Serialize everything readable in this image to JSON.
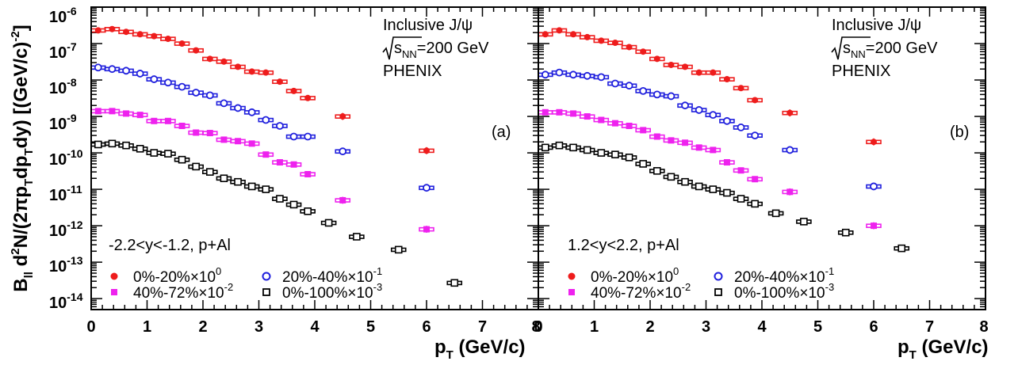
{
  "figure": {
    "ylabel": {
      "main": "B",
      "ll": "ll",
      "mid1": " d",
      "two": "2",
      "mid2": "N/(2πp",
      "t1": "T",
      "mid3": "dp",
      "t2": "T",
      "mid4": "dy) [(GeV/c)",
      "exp": "-2",
      "end": "]"
    },
    "xlabel": {
      "p": "p",
      "t": "T",
      "unit": " (GeV/c)"
    }
  },
  "colors": {
    "c0_20": "#ee1c1c",
    "c20_40": "#1f1fdd",
    "c40_72": "#ee22ee",
    "c0_100": "#000000"
  },
  "chart_data": [
    {
      "type": "scatter",
      "panel_label": "(a)",
      "annotation": {
        "line1": "Inclusive J/ψ",
        "sqrt_s": "s",
        "sqrt_sub": "NN",
        "energy": "=200 GeV",
        "exp_name": "PHENIX"
      },
      "rapidity_label": "-2.2<y<-1.2, p+Al",
      "ylog": true,
      "xlim": [
        0,
        8
      ],
      "ylim": [
        5e-15,
        1e-06
      ],
      "xticks": [
        "0",
        "1",
        "2",
        "3",
        "4",
        "5",
        "6",
        "7",
        "8"
      ],
      "yticks": [
        {
          "base": "10",
          "exp": "-14"
        },
        {
          "base": "10",
          "exp": "-13"
        },
        {
          "base": "10",
          "exp": "-12"
        },
        {
          "base": "10",
          "exp": "-11"
        },
        {
          "base": "10",
          "exp": "-10"
        },
        {
          "base": "10",
          "exp": "-9"
        },
        {
          "base": "10",
          "exp": "-8"
        },
        {
          "base": "10",
          "exp": "-7"
        },
        {
          "base": "10",
          "exp": "-6"
        }
      ],
      "series": [
        {
          "name": "0%-20%×10",
          "name_exp": "0",
          "marker": "filled-circle",
          "color": "#ee1c1c",
          "x": [
            0.125,
            0.375,
            0.625,
            0.875,
            1.125,
            1.375,
            1.625,
            1.875,
            2.125,
            2.375,
            2.625,
            2.875,
            3.125,
            3.375,
            3.625,
            3.875,
            4.5,
            6.0
          ],
          "y": [
            2.3e-07,
            2.5e-07,
            2.1e-07,
            1.8e-07,
            1.6e-07,
            1.35e-07,
            1e-07,
            6.5e-08,
            3.8e-08,
            3.2e-08,
            2.3e-08,
            1.7e-08,
            1.6e-08,
            9e-09,
            5e-09,
            3.2e-09,
            1e-09,
            1.15e-10
          ]
        },
        {
          "name": "20%-40%×10",
          "name_exp": "-1",
          "marker": "open-circle",
          "color": "#1f1fdd",
          "x": [
            0.125,
            0.375,
            0.625,
            0.875,
            1.125,
            1.375,
            1.625,
            1.875,
            2.125,
            2.375,
            2.625,
            2.875,
            3.125,
            3.375,
            3.625,
            3.875,
            4.5,
            6.0
          ],
          "y": [
            2.2e-08,
            2e-08,
            1.8e-08,
            1.5e-08,
            1.05e-08,
            8.5e-09,
            6.5e-09,
            4.5e-09,
            3.8e-09,
            2.3e-09,
            1.7e-09,
            1.3e-09,
            8e-10,
            5.5e-10,
            2.8e-10,
            2.8e-10,
            1.1e-10,
            1.1e-11
          ]
        },
        {
          "name": "40%-72%×10",
          "name_exp": "-2",
          "marker": "filled-square",
          "color": "#ee22ee",
          "x": [
            0.125,
            0.375,
            0.625,
            0.875,
            1.125,
            1.375,
            1.625,
            1.875,
            2.125,
            2.375,
            2.625,
            2.875,
            3.125,
            3.375,
            3.625,
            3.875,
            4.5,
            6.0
          ],
          "y": [
            1.4e-09,
            1.4e-09,
            1.2e-09,
            1.1e-09,
            7.5e-10,
            7.5e-10,
            5.5e-10,
            3.6e-10,
            3.5e-10,
            2.3e-10,
            2.1e-10,
            1.8e-10,
            9e-11,
            5.5e-11,
            4.8e-11,
            2.6e-11,
            5e-12,
            8e-13
          ]
        },
        {
          "name": "0%-100%×10",
          "name_exp": "-3",
          "marker": "open-square",
          "color": "#000000",
          "x": [
            0.125,
            0.375,
            0.625,
            0.875,
            1.125,
            1.375,
            1.625,
            1.875,
            2.125,
            2.375,
            2.625,
            2.875,
            3.125,
            3.375,
            3.625,
            3.875,
            4.25,
            4.75,
            5.5,
            6.5
          ],
          "y": [
            1.7e-10,
            1.8e-10,
            1.6e-10,
            1.3e-10,
            1e-10,
            9.5e-11,
            6.5e-11,
            4.2e-11,
            3e-11,
            2e-11,
            1.6e-11,
            1.2e-11,
            1e-11,
            5.5e-12,
            3.8e-12,
            2.5e-12,
            1.2e-12,
            5e-13,
            2.2e-13,
            2.7e-14
          ]
        }
      ]
    },
    {
      "type": "scatter",
      "panel_label": "(b)",
      "annotation": {
        "line1": "Inclusive J/ψ",
        "sqrt_s": "s",
        "sqrt_sub": "NN",
        "energy": "=200 GeV",
        "exp_name": "PHENIX"
      },
      "rapidity_label": "1.2<y<2.2, p+Al",
      "ylog": true,
      "xlim": [
        0,
        8
      ],
      "ylim": [
        5e-15,
        1e-06
      ],
      "xticks": [
        "0",
        "1",
        "2",
        "3",
        "4",
        "5",
        "6",
        "7",
        "8"
      ],
      "series": [
        {
          "name": "0%-20%×10",
          "name_exp": "0",
          "marker": "filled-circle",
          "color": "#ee1c1c",
          "x": [
            0.125,
            0.375,
            0.625,
            0.875,
            1.125,
            1.375,
            1.625,
            1.875,
            2.125,
            2.375,
            2.625,
            2.875,
            3.125,
            3.375,
            3.625,
            3.875,
            4.5,
            6.0
          ],
          "y": [
            1.8e-07,
            2.3e-07,
            1.8e-07,
            1.5e-07,
            1.2e-07,
            1.05e-07,
            8e-08,
            6e-08,
            3.8e-08,
            2.6e-08,
            2.3e-08,
            1.6e-08,
            1.6e-08,
            1.05e-08,
            6e-09,
            2.8e-09,
            1.25e-09,
            2e-10
          ]
        },
        {
          "name": "20%-40%×10",
          "name_exp": "-1",
          "marker": "open-circle",
          "color": "#1f1fdd",
          "x": [
            0.125,
            0.375,
            0.625,
            0.875,
            1.125,
            1.375,
            1.625,
            1.875,
            2.125,
            2.375,
            2.625,
            2.875,
            3.125,
            3.375,
            3.625,
            3.875,
            4.5,
            6.0
          ],
          "y": [
            1.4e-08,
            1.6e-08,
            1.4e-08,
            1.3e-08,
            1.2e-08,
            8e-09,
            7e-09,
            5e-09,
            4e-09,
            3.6e-09,
            2e-09,
            1.5e-09,
            1.1e-09,
            7.5e-10,
            5e-10,
            3e-10,
            1.2e-10,
            1.2e-11
          ]
        },
        {
          "name": "40%-72%×10",
          "name_exp": "-2",
          "marker": "filled-square",
          "color": "#ee22ee",
          "x": [
            0.125,
            0.375,
            0.625,
            0.875,
            1.125,
            1.375,
            1.625,
            1.875,
            2.125,
            2.375,
            2.625,
            2.875,
            3.125,
            3.375,
            3.625,
            3.875,
            4.5,
            6.0
          ],
          "y": [
            1.3e-09,
            1.3e-09,
            1.2e-09,
            1e-09,
            8e-10,
            6.5e-10,
            5.5e-10,
            4.2e-10,
            2.8e-10,
            2.2e-10,
            1.9e-10,
            1.4e-10,
            1.2e-10,
            5.5e-11,
            3.3e-11,
            1.9e-11,
            8.5e-12,
            1e-12
          ]
        },
        {
          "name": "0%-100%×10",
          "name_exp": "-3",
          "marker": "open-square",
          "color": "#000000",
          "x": [
            0.125,
            0.375,
            0.625,
            0.875,
            1.125,
            1.375,
            1.625,
            1.875,
            2.125,
            2.375,
            2.625,
            2.875,
            3.125,
            3.375,
            3.625,
            3.875,
            4.25,
            4.75,
            5.5,
            6.5
          ],
          "y": [
            1.4e-10,
            1.6e-10,
            1.4e-10,
            1.2e-10,
            1e-10,
            9e-11,
            7.5e-11,
            5e-11,
            3.2e-11,
            2.2e-11,
            1.6e-11,
            1.2e-11,
            1e-11,
            8e-12,
            5.5e-12,
            4e-12,
            2.2e-12,
            1.3e-12,
            6.5e-13,
            2.4e-13
          ]
        }
      ]
    }
  ]
}
